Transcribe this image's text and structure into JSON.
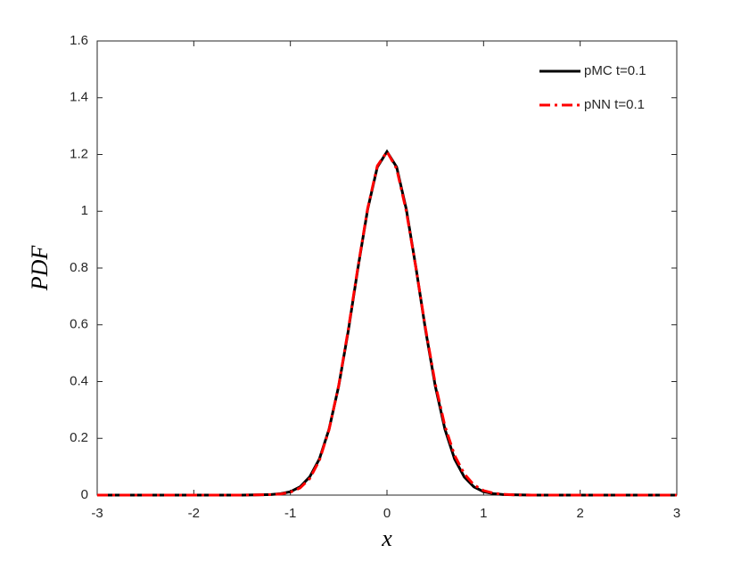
{
  "chart_data": {
    "type": "line",
    "xlabel": "x",
    "ylabel": "PDF",
    "x": [
      -3,
      -2,
      -1.5,
      -1.3,
      -1.2,
      -1.1,
      -1,
      -0.9,
      -0.8,
      -0.7,
      -0.6,
      -0.5,
      -0.4,
      -0.3,
      -0.2,
      -0.1,
      0,
      0.1,
      0.2,
      0.3,
      0.4,
      0.5,
      0.6,
      0.7,
      0.8,
      0.9,
      1,
      1.1,
      1.2,
      1.3,
      1.5,
      2,
      3
    ],
    "series": [
      {
        "name": "pMC t=0.1",
        "color": "#000000",
        "linestyle": "solid",
        "values": [
          0,
          0,
          0,
          0.001,
          0.002,
          0.005,
          0.012,
          0.029,
          0.064,
          0.127,
          0.232,
          0.384,
          0.58,
          0.801,
          1.007,
          1.156,
          1.21,
          1.156,
          1.007,
          0.801,
          0.58,
          0.384,
          0.232,
          0.127,
          0.064,
          0.029,
          0.012,
          0.005,
          0.002,
          0.001,
          0,
          0,
          0
        ]
      },
      {
        "name": "pNN t=0.1",
        "color": "#ff0000",
        "linestyle": "dashdot",
        "values": [
          0,
          0,
          0,
          0.001,
          0.002,
          0.004,
          0.01,
          0.025,
          0.058,
          0.122,
          0.23,
          0.386,
          0.585,
          0.805,
          1.01,
          1.16,
          1.21,
          1.15,
          1.0,
          0.8,
          0.585,
          0.392,
          0.243,
          0.14,
          0.075,
          0.036,
          0.016,
          0.007,
          0.003,
          0.001,
          0,
          0,
          0
        ]
      }
    ],
    "xlim": [
      -3,
      3
    ],
    "xticks": [
      -3,
      -2,
      -1,
      0,
      1,
      2,
      3
    ],
    "ylim": [
      0,
      1.6
    ],
    "yticks": [
      0,
      0.2,
      0.4,
      0.6,
      0.8,
      1,
      1.2,
      1.4,
      1.6
    ],
    "grid": false,
    "legend": "northeast"
  }
}
